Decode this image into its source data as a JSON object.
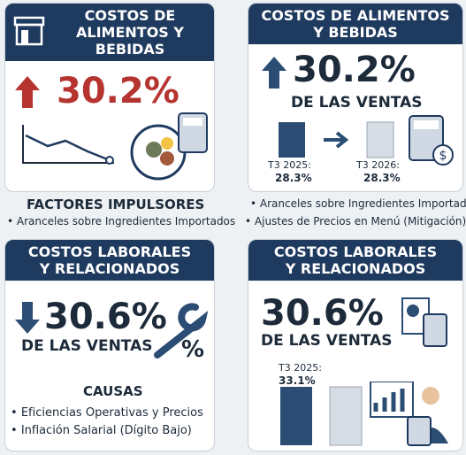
{
  "cards": [
    {
      "header": [
        "COSTOS DE",
        "ALIMENTOS Y",
        "BEBIDAS"
      ],
      "value": "30.2%"
    },
    {
      "header": [
        "COSTOS DE ALIMENTOS",
        "Y BEBIDAS"
      ],
      "value": "30.2%",
      "sub": "DE LAS VENTAS",
      "bars": [
        {
          "label": "T3 2025:",
          "value": "28.3%"
        },
        {
          "label": "T3 2026:",
          "value": "28.3%"
        }
      ]
    },
    {
      "header": [
        "COSTOS LABORALES",
        "Y RELACIONADOS"
      ],
      "value": "30.6%",
      "sub": "DE LAS VENTAS",
      "icon_text": "%"
    },
    {
      "header": [
        "COSTOS LABORALES",
        "Y RELACIONADOS"
      ],
      "value": "30.6%",
      "sub": "DE LAS VENTAS",
      "bars": [
        {
          "label": "T3 2025:",
          "value": "33.1%"
        }
      ]
    }
  ],
  "drivers": {
    "title": "FACTORES IMPULSORES",
    "items": [
      "Aranceles sobre Ingredientes Importados"
    ]
  },
  "drivers2": {
    "items": [
      "Aranceles sobre Ingredientes Importados",
      "Ajustes de Precios en Menú (Mitigación)"
    ]
  },
  "causes": {
    "title": "CAUSAS",
    "items": [
      "Eficiencias Operativas y Precios",
      "Inflación Salarial (Dígito Bajo)"
    ]
  }
}
